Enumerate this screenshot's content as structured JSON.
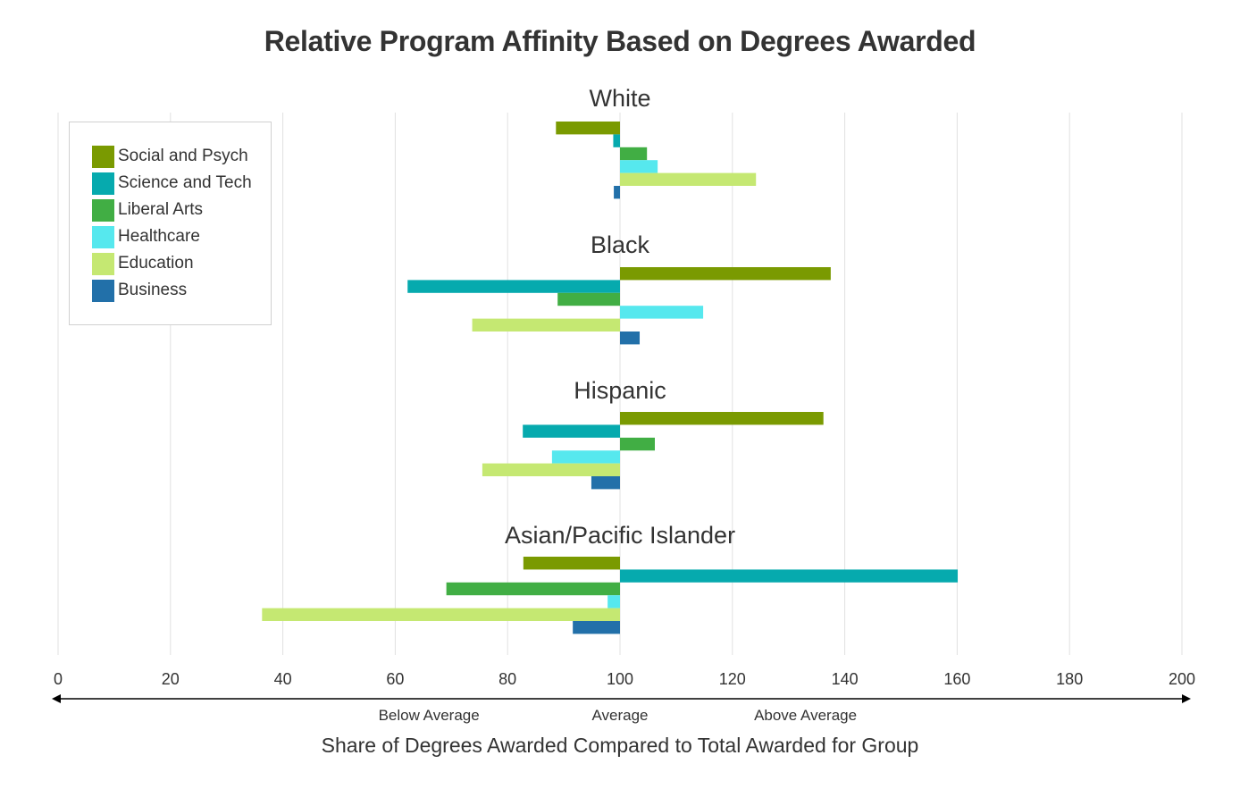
{
  "chart_data": {
    "type": "bar",
    "orientation": "horizontal",
    "title": "Relative Program Affinity Based on Degrees Awarded",
    "xlabel": "Share of Degrees Awarded Compared to Total Awarded for Group",
    "ylabel": "",
    "xlim": [
      0,
      200
    ],
    "baseline": 100,
    "xticks": [
      0,
      20,
      40,
      60,
      80,
      100,
      120,
      140,
      160,
      180,
      200
    ],
    "grid": true,
    "legend_position": "top-left",
    "region_labels": [
      {
        "text": "Below Average",
        "x": 66
      },
      {
        "text": "Average",
        "x": 100
      },
      {
        "text": "Above Average",
        "x": 133
      }
    ],
    "series_names": [
      "Social and Psych",
      "Science and Tech",
      "Liberal Arts",
      "Healthcare",
      "Education",
      "Business"
    ],
    "series_colors": [
      "#7A9A01",
      "#06AAAE",
      "#41AE44",
      "#56E8EE",
      "#C5E872",
      "#2270A9"
    ],
    "groups": [
      {
        "name": "White",
        "values": [
          88.6,
          98.8,
          104.8,
          106.7,
          124.2,
          98.9
        ]
      },
      {
        "name": "Black",
        "values": [
          137.5,
          62.2,
          88.9,
          114.8,
          73.7,
          103.5
        ]
      },
      {
        "name": "Hispanic",
        "values": [
          136.2,
          82.7,
          106.2,
          87.9,
          75.5,
          94.9
        ]
      },
      {
        "name": "Asian/Pacific Islander",
        "values": [
          82.8,
          160.1,
          69.1,
          97.8,
          36.3,
          91.6
        ]
      }
    ]
  }
}
